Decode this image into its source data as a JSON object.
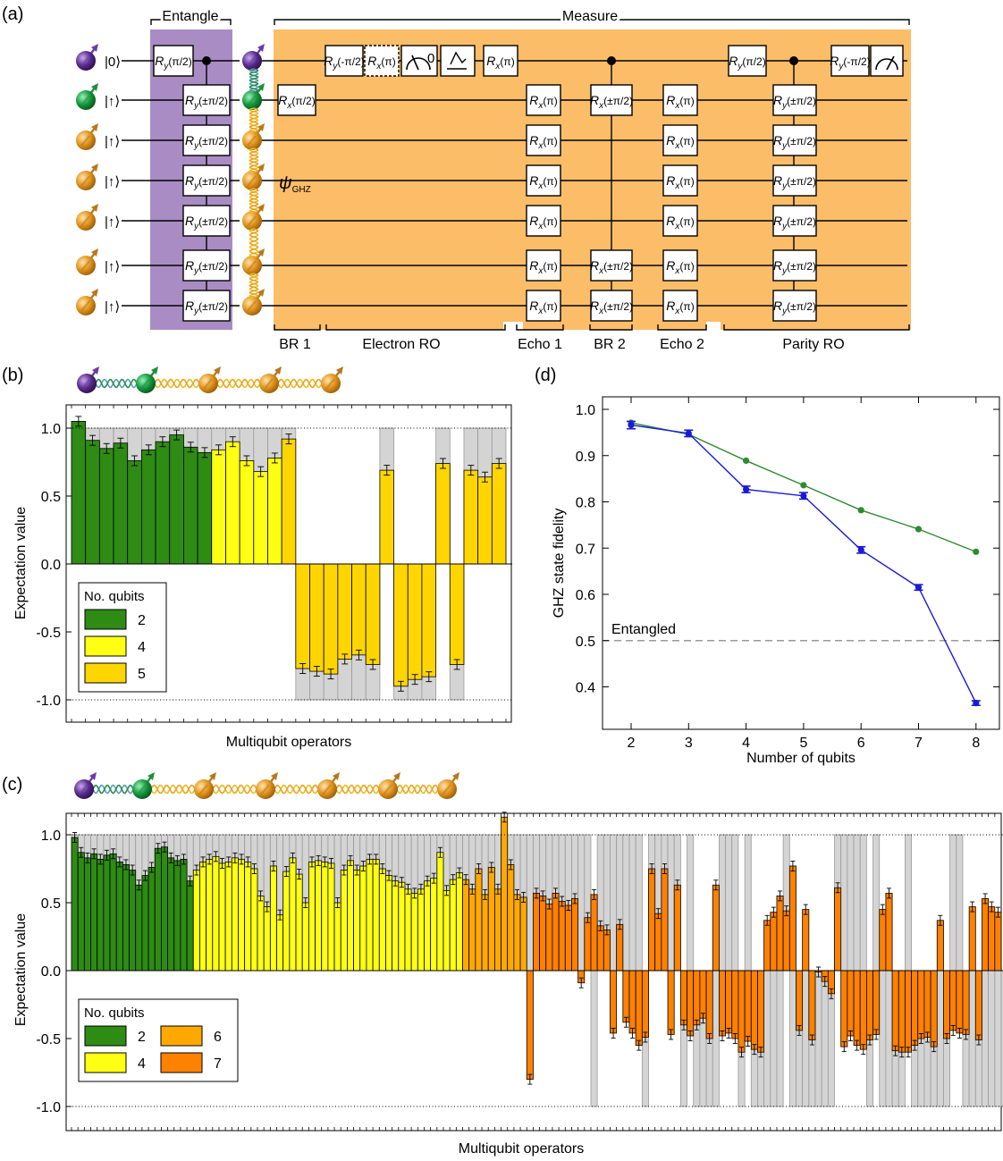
{
  "panel_labels": {
    "a": "(a)",
    "b": "(b)",
    "c": "(c)",
    "d": "(d)"
  },
  "colors": {
    "q2": "#2e8b13",
    "q4": "#ffff14",
    "q5": "#ffd500",
    "q6": "#ffa900",
    "q7": "#ff8100",
    "ghost": "#d4d4d4",
    "entangle_bg": "#a98cc4",
    "measure_bg": "#fbbd68",
    "electron_qubit": "#5a2d8c",
    "nitrogen_qubit": "#159a3c",
    "carbon_qubit": "#e2951e",
    "fidelity_measured": "#1a1ad6",
    "fidelity_predicted": "#2e8b2e"
  },
  "circuit": {
    "entangle_label": "Entangle",
    "measure_label": "Measure",
    "initial_states": [
      "|0⟩",
      "|↑⟩",
      "|↑⟩",
      "|↑⟩",
      "|↑⟩",
      "|↑⟩",
      "|↑⟩"
    ],
    "psi_label": "ψ",
    "psi_subscript": "GHZ",
    "entangle_gates": {
      "first": "Ry(π/2)",
      "others": "Ry(±π/2)"
    },
    "gate_labels": {
      "ry_pi2": "Ry(π/2)",
      "ry_mpi2": "Ry(-π/2)",
      "rx_pi": "Rx(π)",
      "rx_pi2": "Rx(π/2)",
      "rx_pm_pi2": "Rx(±π/2)",
      "ry_pm_pi2": "Ry(±π/2)",
      "measure_outcome": "0"
    },
    "section_labels": [
      "BR 1",
      "Electron RO",
      "Echo 1",
      "BR 2",
      "Echo 2",
      "Parity RO"
    ]
  },
  "chart_data": [
    {
      "id": "b",
      "type": "bar",
      "ylabel": "Expectation value",
      "xlabel": "Multiqubit operators",
      "ylim": [
        -1.15,
        1.1
      ],
      "yticks": [
        "1.0",
        "0.5",
        "0.0",
        "-0.5",
        "-1.0"
      ],
      "legend": {
        "title": "No. qubits",
        "entries": [
          "2",
          "4",
          "5"
        ],
        "placement": "lower-left"
      },
      "groups": [
        {
          "name": "2",
          "values": [
            1.05,
            0.91,
            0.85,
            0.89,
            0.76,
            0.84,
            0.9,
            0.95,
            0.86,
            0.82
          ]
        },
        {
          "name": "4",
          "values": [
            0.84,
            0.9,
            0.76,
            0.68,
            0.78
          ]
        },
        {
          "name": "5",
          "values": [
            0.92,
            -0.77,
            -0.79,
            -0.81,
            -0.7,
            -0.67,
            -0.74,
            0.69,
            -0.9,
            -0.85,
            -0.83,
            0.74,
            -0.74,
            0.69,
            0.64,
            0.74
          ]
        }
      ],
      "ideal": [
        1,
        1,
        1,
        1,
        1,
        1,
        1,
        1,
        1,
        1,
        1,
        1,
        1,
        1,
        1,
        1,
        -1,
        -1,
        -1,
        -1,
        -1,
        -1,
        1,
        -1,
        -1,
        -1,
        1,
        -1,
        1,
        1,
        1
      ]
    },
    {
      "id": "c",
      "type": "bar",
      "ylabel": "Expectation value",
      "xlabel": "Multiqubit operators",
      "ylim": [
        -1.15,
        1.15
      ],
      "yticks": [
        "1.0",
        "0.5",
        "0.0",
        "-0.5",
        "-1.0"
      ],
      "legend": {
        "title": "No. qubits",
        "entries": [
          "2",
          "4",
          "6",
          "7"
        ],
        "placement": "lower-left"
      },
      "groups": [
        {
          "name": "2",
          "values": [
            0.98,
            0.87,
            0.83,
            0.86,
            0.82,
            0.85,
            0.86,
            0.8,
            0.78,
            0.74,
            0.63,
            0.7,
            0.76,
            0.9,
            0.91,
            0.83,
            0.81,
            0.82,
            0.66
          ]
        },
        {
          "name": "4",
          "values": [
            0.74,
            0.8,
            0.82,
            0.84,
            0.79,
            0.8,
            0.83,
            0.82,
            0.8,
            0.75,
            0.55,
            0.47,
            0.77,
            0.41,
            0.73,
            0.83,
            0.71,
            0.5,
            0.8,
            0.81,
            0.8,
            0.79,
            0.5,
            0.74,
            0.81,
            0.74,
            0.77,
            0.82,
            0.82,
            0.75,
            0.7,
            0.66,
            0.65,
            0.6,
            0.57,
            0.6,
            0.66,
            0.68,
            0.87,
            0.59,
            0.67,
            0.72
          ]
        },
        {
          "name": "6",
          "values": [
            0.67,
            0.6,
            0.75,
            0.56,
            0.76,
            0.6,
            1.13,
            0.78,
            0.56,
            0.54
          ]
        },
        {
          "name": "7",
          "values": [
            -0.8,
            0.57,
            0.55,
            0.49,
            0.57,
            0.51,
            0.48,
            0.53,
            -0.09,
            0.39,
            0.56,
            0.33,
            0.3,
            -0.46,
            0.34,
            -0.38,
            -0.46,
            -0.55,
            -0.49,
            0.75,
            0.42,
            0.75,
            -0.47,
            0.63,
            -0.4,
            -0.48,
            -0.4,
            -0.35,
            -0.5,
            0.63,
            -0.48,
            -0.46,
            -0.5,
            -0.6,
            -0.52,
            -0.58,
            -0.6,
            0.37,
            0.43,
            0.55,
            0.44,
            0.77,
            -0.44,
            0.45,
            -0.51,
            -0.01,
            -0.08,
            -0.17,
            0.61,
            -0.56,
            -0.48,
            -0.55,
            -0.58,
            -0.51,
            -0.47,
            0.45,
            0.57,
            -0.59,
            -0.6,
            -0.6,
            -0.55,
            -0.5,
            -0.49,
            -0.56,
            0.37,
            -0.5,
            -0.44,
            -0.46,
            -0.47,
            0.47,
            -0.51,
            0.53,
            0.47,
            0.43
          ]
        }
      ],
      "ideal": [
        1,
        1,
        1,
        1,
        1,
        1,
        1,
        1,
        1,
        1,
        1,
        1,
        1,
        1,
        1,
        1,
        1,
        1,
        1,
        1,
        1,
        1,
        1,
        1,
        1,
        1,
        1,
        1,
        1,
        1,
        1,
        1,
        1,
        1,
        1,
        1,
        1,
        1,
        1,
        1,
        1,
        1,
        1,
        1,
        1,
        1,
        1,
        1,
        1,
        1,
        1,
        1,
        1,
        1,
        1,
        1,
        1,
        1,
        1,
        1,
        1,
        1,
        1,
        1,
        1,
        1,
        1,
        1,
        1,
        1,
        1,
        1,
        1,
        1,
        1,
        1,
        1,
        1,
        1,
        1,
        1,
        -1,
        1,
        1,
        1,
        1,
        1,
        1,
        1,
        -1,
        1,
        1,
        1,
        1,
        1,
        -1,
        1,
        -1,
        -1,
        -1,
        -1,
        1,
        1,
        1,
        -1,
        1,
        -1,
        -1,
        -1,
        -1,
        -1,
        1,
        -1,
        -1,
        -1,
        -1,
        -1,
        -1,
        -1,
        1,
        1,
        1,
        1,
        1,
        -1,
        1,
        -1,
        -1,
        -1,
        -1,
        1,
        -1,
        -1,
        -1,
        -1,
        -1,
        -1,
        1,
        1,
        -1,
        -1,
        -1,
        -1,
        -1,
        -1,
        -1,
        1,
        -1,
        -1,
        -1,
        -1,
        1,
        -1,
        1,
        1,
        1
      ]
    },
    {
      "id": "d",
      "type": "line",
      "xlabel": "Number of qubits",
      "ylabel": "GHZ state fidelity",
      "xlim": [
        1.5,
        8.5
      ],
      "ylim": [
        0.35,
        1.0
      ],
      "xticks": [
        "2",
        "3",
        "4",
        "5",
        "6",
        "7",
        "8"
      ],
      "yticks": [
        "1.0",
        "0.9",
        "0.8",
        "0.7",
        "0.6",
        "0.5",
        "0.4"
      ],
      "threshold": {
        "value": 0.5,
        "label": "Entangled"
      },
      "series": [
        {
          "x": [
            2,
            3,
            4,
            5,
            6,
            7,
            8
          ],
          "y": [
            0.966,
            0.948,
            0.827,
            0.813,
            0.696,
            0.615,
            0.365
          ],
          "err": [
            0.008,
            0.007,
            0.007,
            0.007,
            0.007,
            0.006,
            0.005
          ]
        },
        {
          "x": [
            2,
            3,
            4,
            5,
            6,
            7,
            8
          ],
          "y": [
            0.971,
            0.946,
            0.889,
            0.836,
            0.782,
            0.741,
            0.692
          ]
        }
      ]
    }
  ]
}
